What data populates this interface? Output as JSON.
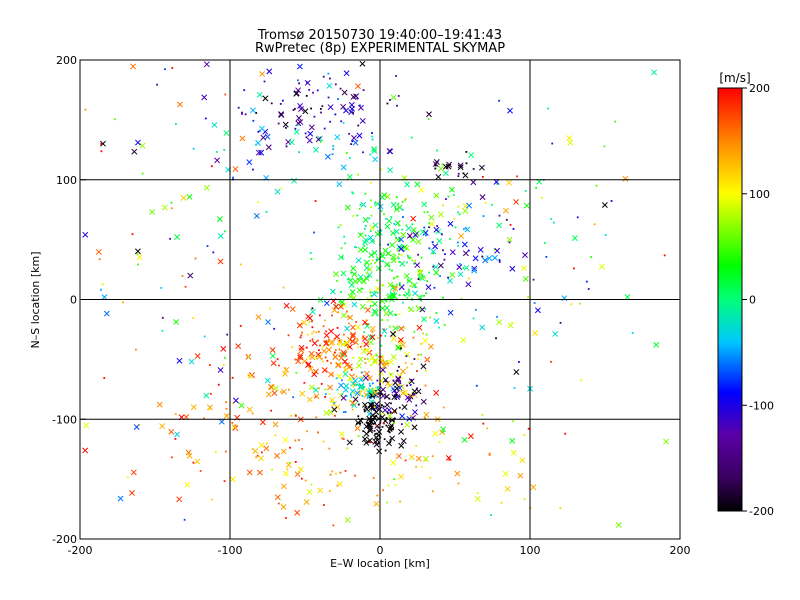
{
  "chart_data": {
    "type": "scatter",
    "title_line1": "Tromsø 20150730 19:40:00–19:41:43",
    "title_line2": "RwPretec (8p) EXPERIMENTAL SKYMAP",
    "xlabel": "E–W location [km]",
    "ylabel": "N–S location [km]",
    "xlim": [
      -200,
      200
    ],
    "ylim": [
      -200,
      200
    ],
    "xticks": [
      -200,
      -100,
      0,
      100,
      200
    ],
    "yticks": [
      -200,
      -100,
      0,
      100,
      200
    ],
    "grid": true,
    "colorbar": {
      "label": "[m/s]",
      "range": [
        -200,
        200
      ],
      "ticks": [
        200,
        100,
        0,
        -100,
        -200
      ],
      "colormap": "rainbow (black → purple → blue → cyan → green → yellow → orange → red)"
    },
    "markers": [
      "dot",
      "cross"
    ],
    "clusters": [
      {
        "cx": -45,
        "cy": 160,
        "sx": 30,
        "sy": 20,
        "n": 110,
        "v": -130,
        "vs": 40
      },
      {
        "cx": 55,
        "cy": 110,
        "sx": 12,
        "sy": 6,
        "n": 18,
        "v": -180,
        "vs": 20
      },
      {
        "cx": -60,
        "cy": 130,
        "sx": 40,
        "sy": 15,
        "n": 40,
        "v": -40,
        "vs": 40
      },
      {
        "cx": 5,
        "cy": 20,
        "sx": 18,
        "sy": 30,
        "n": 260,
        "v": 25,
        "vs": 30
      },
      {
        "cx": 45,
        "cy": 40,
        "sx": 25,
        "sy": 20,
        "n": 70,
        "v": -90,
        "vs": 50
      },
      {
        "cx": 30,
        "cy": 70,
        "sx": 30,
        "sy": 15,
        "n": 60,
        "v": 40,
        "vs": 50
      },
      {
        "cx": -30,
        "cy": -35,
        "sx": 20,
        "sy": 15,
        "n": 140,
        "v": 175,
        "vs": 25
      },
      {
        "cx": -10,
        "cy": -60,
        "sx": 25,
        "sy": 20,
        "n": 110,
        "v": 110,
        "vs": 30
      },
      {
        "cx": -15,
        "cy": -75,
        "sx": 10,
        "sy": 10,
        "n": 50,
        "v": -30,
        "vs": 20
      },
      {
        "cx": 10,
        "cy": -75,
        "sx": 12,
        "sy": 15,
        "n": 60,
        "v": -150,
        "vs": 40
      },
      {
        "cx": 0,
        "cy": -100,
        "sx": 8,
        "sy": 12,
        "n": 110,
        "v": -200,
        "vs": 10
      },
      {
        "cx": -80,
        "cy": -110,
        "sx": 45,
        "sy": 35,
        "n": 120,
        "v": 160,
        "vs": 40
      },
      {
        "cx": 20,
        "cy": -140,
        "sx": 50,
        "sy": 25,
        "n": 80,
        "v": 120,
        "vs": 40
      },
      {
        "cx": -140,
        "cy": 80,
        "sx": 50,
        "sy": 80,
        "n": 80,
        "v": 30,
        "vs": 120
      },
      {
        "cx": 120,
        "cy": 40,
        "sx": 40,
        "sy": 60,
        "n": 50,
        "v": 20,
        "vs": 120
      },
      {
        "cx": 0,
        "cy": 0,
        "sx": 110,
        "sy": 110,
        "n": 120,
        "v": 60,
        "vs": 120
      }
    ]
  }
}
